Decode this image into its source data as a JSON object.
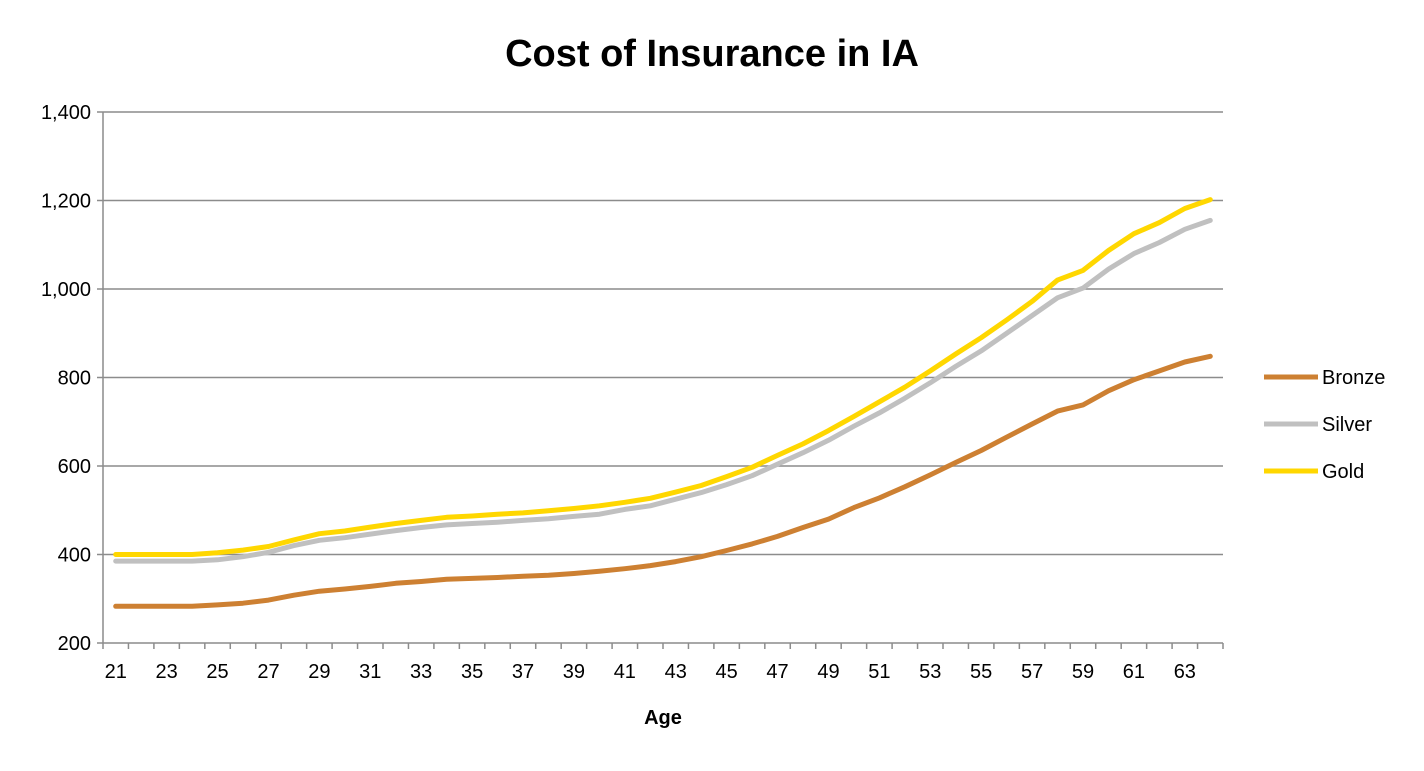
{
  "chart_data": {
    "type": "line",
    "title": "Cost of Insurance in IA",
    "xlabel": "Age",
    "ylabel": "",
    "ylim": [
      200,
      1400
    ],
    "yticks": [
      200,
      400,
      600,
      800,
      1000,
      1200,
      1400
    ],
    "ytick_labels": [
      "200",
      "400",
      "600",
      "800",
      "1,000",
      "1,200",
      "1,400"
    ],
    "xtick_labels": [
      "21",
      "23",
      "25",
      "27",
      "29",
      "31",
      "33",
      "35",
      "37",
      "39",
      "41",
      "43",
      "45",
      "47",
      "49",
      "51",
      "53",
      "55",
      "57",
      "59",
      "61",
      "63"
    ],
    "grid": "horizontal",
    "legend_position": "right",
    "x": [
      21,
      22,
      23,
      24,
      25,
      26,
      27,
      28,
      29,
      30,
      31,
      32,
      33,
      34,
      35,
      36,
      37,
      38,
      39,
      40,
      41,
      42,
      43,
      44,
      45,
      46,
      47,
      48,
      49,
      50,
      51,
      52,
      53,
      54,
      55,
      56,
      57,
      58,
      59,
      60,
      61,
      62,
      63,
      64
    ],
    "series": [
      {
        "name": "Bronze",
        "color": "#CD8032",
        "values": [
          283,
          283,
          283,
          283,
          286,
          290,
          297,
          308,
          317,
          322,
          328,
          335,
          339,
          344,
          346,
          348,
          351,
          353,
          357,
          362,
          368,
          375,
          384,
          395,
          409,
          424,
          441,
          461,
          480,
          506,
          528,
          553,
          580,
          608,
          635,
          665,
          695,
          724,
          738,
          770,
          795,
          815,
          835,
          848
        ]
      },
      {
        "name": "Silver",
        "color": "#C0C0C0",
        "values": [
          385,
          385,
          385,
          385,
          388,
          395,
          405,
          420,
          432,
          438,
          446,
          454,
          461,
          467,
          470,
          473,
          477,
          481,
          486,
          491,
          502,
          510,
          525,
          540,
          558,
          578,
          604,
          630,
          658,
          690,
          720,
          753,
          788,
          825,
          860,
          900,
          940,
          980,
          1002,
          1045,
          1080,
          1105,
          1135,
          1155
        ]
      },
      {
        "name": "Gold",
        "color": "#FFD700",
        "values": [
          400,
          400,
          400,
          400,
          404,
          410,
          418,
          433,
          447,
          453,
          462,
          470,
          477,
          484,
          487,
          491,
          494,
          499,
          504,
          510,
          518,
          527,
          541,
          556,
          576,
          597,
          624,
          650,
          680,
          712,
          745,
          778,
          815,
          853,
          890,
          930,
          972,
          1020,
          1042,
          1087,
          1125,
          1150,
          1182,
          1202
        ]
      }
    ]
  }
}
